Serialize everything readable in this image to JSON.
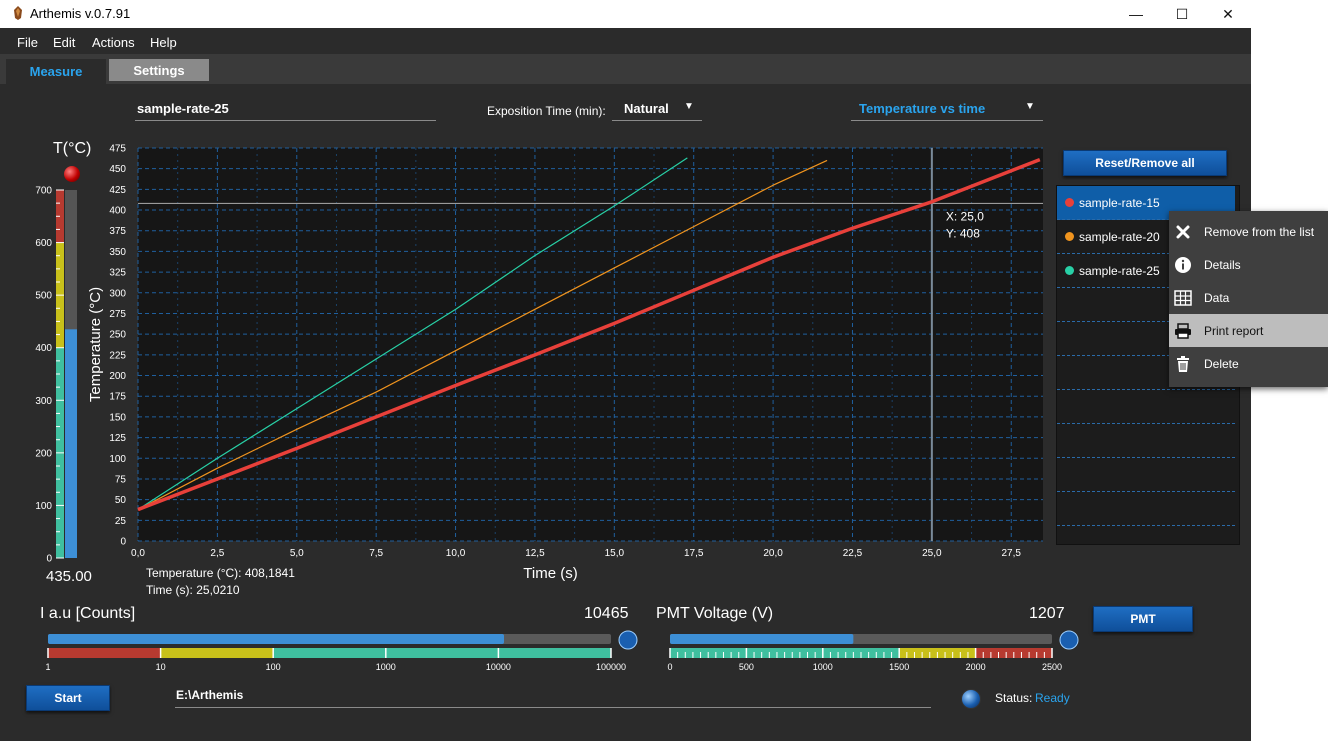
{
  "window": {
    "title": "Arthemis v.0.7.91",
    "controls": {
      "minimize": "—",
      "maximize": "☐",
      "close": "✕"
    }
  },
  "menu": [
    "File",
    "Edit",
    "Actions",
    "Help"
  ],
  "tabs": [
    {
      "label": "Measure",
      "active": true
    },
    {
      "label": "Settings",
      "active": false
    }
  ],
  "sample_name": "sample-rate-25",
  "exposition": {
    "label": "Exposition Time (min):",
    "value": "Natural"
  },
  "plot_selector": {
    "value": "Temperature vs time"
  },
  "thermometer": {
    "title": "T(°C)",
    "ticks": [
      "700",
      "600",
      "500",
      "400",
      "300",
      "200",
      "100",
      "0"
    ],
    "value": 435,
    "max": 700,
    "readout": "435.00"
  },
  "chart_data": {
    "type": "line",
    "xlabel": "Time (s)",
    "ylabel": "Temperature (°C)",
    "xlim": [
      0,
      28.5
    ],
    "ylim": [
      0,
      475
    ],
    "xticks": [
      "0,0",
      "2,5",
      "5,0",
      "7,5",
      "10,0",
      "12,5",
      "15,0",
      "17,5",
      "20,0",
      "22,5",
      "25,0",
      "27,5"
    ],
    "xtick_values": [
      0,
      2.5,
      5,
      7.5,
      10,
      12.5,
      15,
      17.5,
      20,
      22.5,
      25,
      27.5
    ],
    "yticks": [
      0,
      25,
      50,
      75,
      100,
      125,
      150,
      175,
      200,
      225,
      250,
      275,
      300,
      325,
      350,
      375,
      400,
      425,
      450,
      475
    ],
    "grid": true,
    "series": [
      {
        "name": "sample-rate-15",
        "color": "#e8403a",
        "width": 3.5,
        "x": [
          0,
          2.5,
          5,
          7.5,
          10,
          12.5,
          15,
          17.5,
          20,
          22.5,
          25,
          28.4
        ],
        "y": [
          38,
          75,
          112,
          150,
          188,
          225,
          263,
          303,
          343,
          378,
          410,
          461
        ]
      },
      {
        "name": "sample-rate-20",
        "color": "#f0941e",
        "width": 1.2,
        "x": [
          0,
          2.5,
          5,
          7.5,
          10,
          12.5,
          15,
          17.5,
          20,
          21.7
        ],
        "y": [
          38,
          88,
          135,
          180,
          230,
          280,
          330,
          380,
          430,
          460
        ]
      },
      {
        "name": "sample-rate-25",
        "color": "#28d0a6",
        "width": 1.2,
        "x": [
          0,
          2.5,
          5,
          7.5,
          10,
          12.5,
          15,
          17.3
        ],
        "y": [
          38,
          100,
          160,
          220,
          280,
          345,
          405,
          463
        ]
      }
    ],
    "crosshair": {
      "x": 25.0,
      "y": 408,
      "label_x": "X: 25,0",
      "label_y": "Y: 408"
    }
  },
  "readout": {
    "temperature": "Temperature (°C): 408,1841",
    "time": "Time (s): 25,0210"
  },
  "reset_button": "Reset/Remove all",
  "legend": [
    {
      "label": "sample-rate-15",
      "color": "#e8403a",
      "selected": true
    },
    {
      "label": "sample-rate-20",
      "color": "#f0941e",
      "selected": false
    },
    {
      "label": "sample-rate-25",
      "color": "#28d0a6",
      "selected": false
    }
  ],
  "context_menu": [
    {
      "label": "Remove from the list",
      "icon": "close-icon"
    },
    {
      "label": "Details",
      "icon": "info-icon"
    },
    {
      "label": "Data",
      "icon": "table-icon"
    },
    {
      "label": "Print report",
      "icon": "printer-icon",
      "highlighted": true
    },
    {
      "label": "Delete",
      "icon": "trash-icon"
    }
  ],
  "intensity": {
    "label": "I a.u [Counts]",
    "value": "10465",
    "fraction": 0.81,
    "scale": [
      "1",
      "10",
      "100",
      "1000",
      "10000",
      "100000"
    ]
  },
  "pmt": {
    "label": "PMT Voltage (V)",
    "value": "1207",
    "fraction": 0.48,
    "scale": [
      "0",
      "500",
      "1000",
      "1500",
      "2000",
      "2500"
    ],
    "button": "PMT"
  },
  "start_button": "Start",
  "path": "E:\\Arthemis",
  "status": {
    "label": "Status:",
    "value": "Ready"
  },
  "colors": {
    "accent": "#2aa4ee",
    "button": "#1565c0",
    "selected_row": "#0f5ea8"
  }
}
